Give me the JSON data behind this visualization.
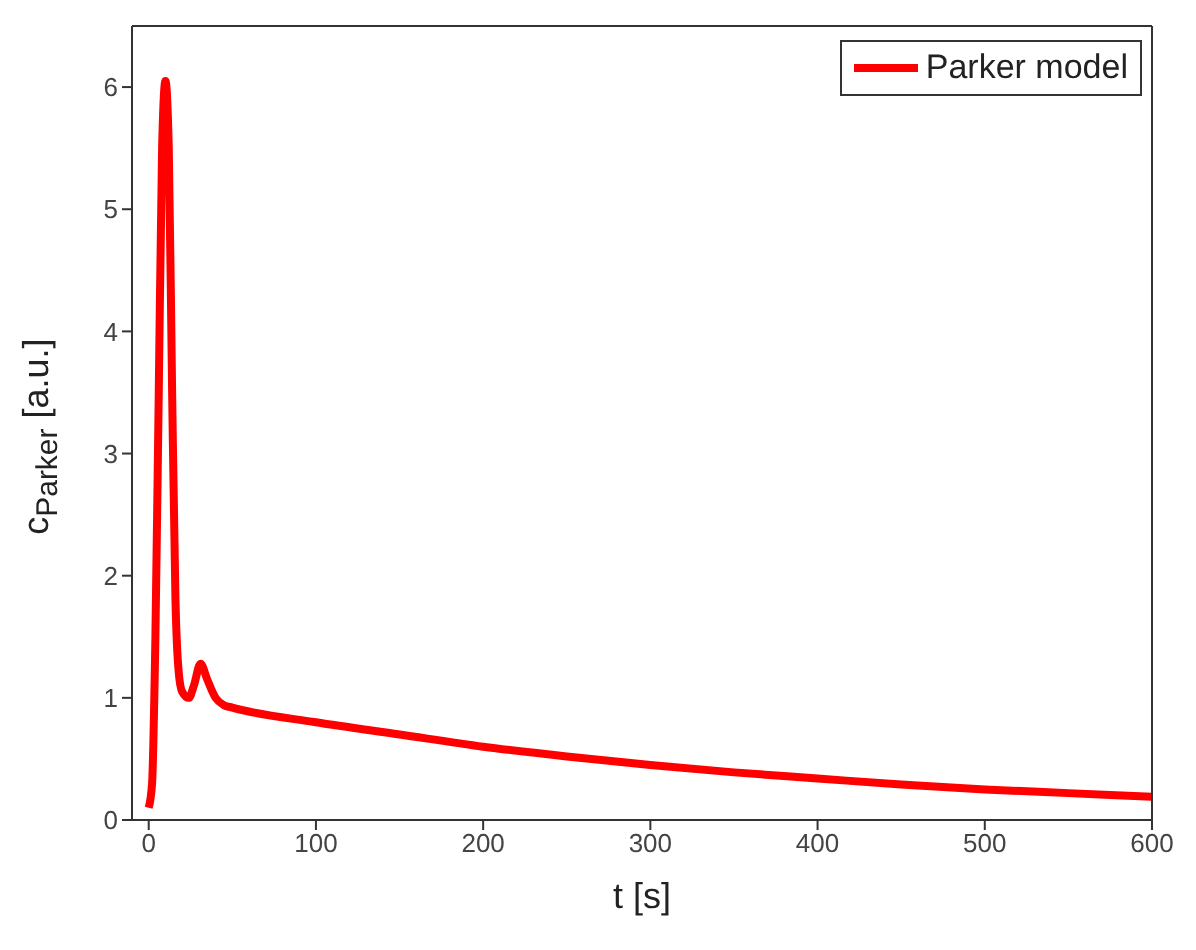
{
  "chart_data": {
    "type": "line",
    "xlabel": "t [s]",
    "ylabel": "c$_{Parker}$ [a.u.]",
    "x": [
      0,
      2,
      4,
      6,
      8,
      10,
      12,
      14,
      16,
      18,
      20,
      24,
      27,
      31,
      35,
      40,
      45,
      50,
      100,
      150,
      200,
      250,
      300,
      350,
      400,
      450,
      500,
      550,
      600
    ],
    "series": [
      {
        "name": "Parker model",
        "color": "#ff0000",
        "values": [
          0.1,
          0.3,
          1.5,
          3.5,
          5.5,
          6.05,
          5.5,
          3.5,
          1.8,
          1.2,
          1.05,
          1.0,
          1.1,
          1.28,
          1.15,
          1.0,
          0.94,
          0.92,
          0.8,
          0.7,
          0.6,
          0.52,
          0.45,
          0.39,
          0.34,
          0.29,
          0.25,
          0.22,
          0.19
        ]
      }
    ],
    "xlim": [
      -10,
      600
    ],
    "xticks": [
      0,
      100,
      200,
      300,
      400,
      500,
      600
    ],
    "ylim": [
      0,
      6.5
    ],
    "yticks": [
      0,
      1,
      2,
      3,
      4,
      5,
      6
    ],
    "legend": "top right",
    "grid": false,
    "marker": "none",
    "line_style": "solid"
  }
}
